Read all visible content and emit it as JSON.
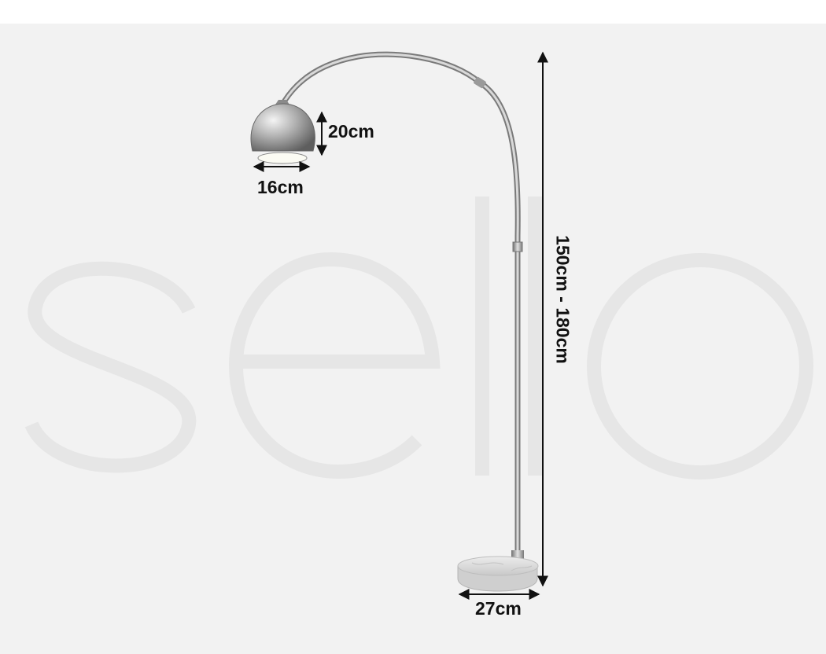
{
  "watermark": {
    "text": "sello"
  },
  "dimensions": {
    "shade_height": "20cm",
    "shade_width": "16cm",
    "base_width": "27cm",
    "overall_height": "150cm - 180cm"
  },
  "colors": {
    "page_background": "#ffffff",
    "panel_background": "#f2f2f2",
    "chrome": "#a6a6a6",
    "marble": "#dcdcdc",
    "watermark": "#e6e6e6",
    "dimension_line": "#111111"
  },
  "icons": [
    "arc-floor-lamp",
    "double-arrow"
  ]
}
